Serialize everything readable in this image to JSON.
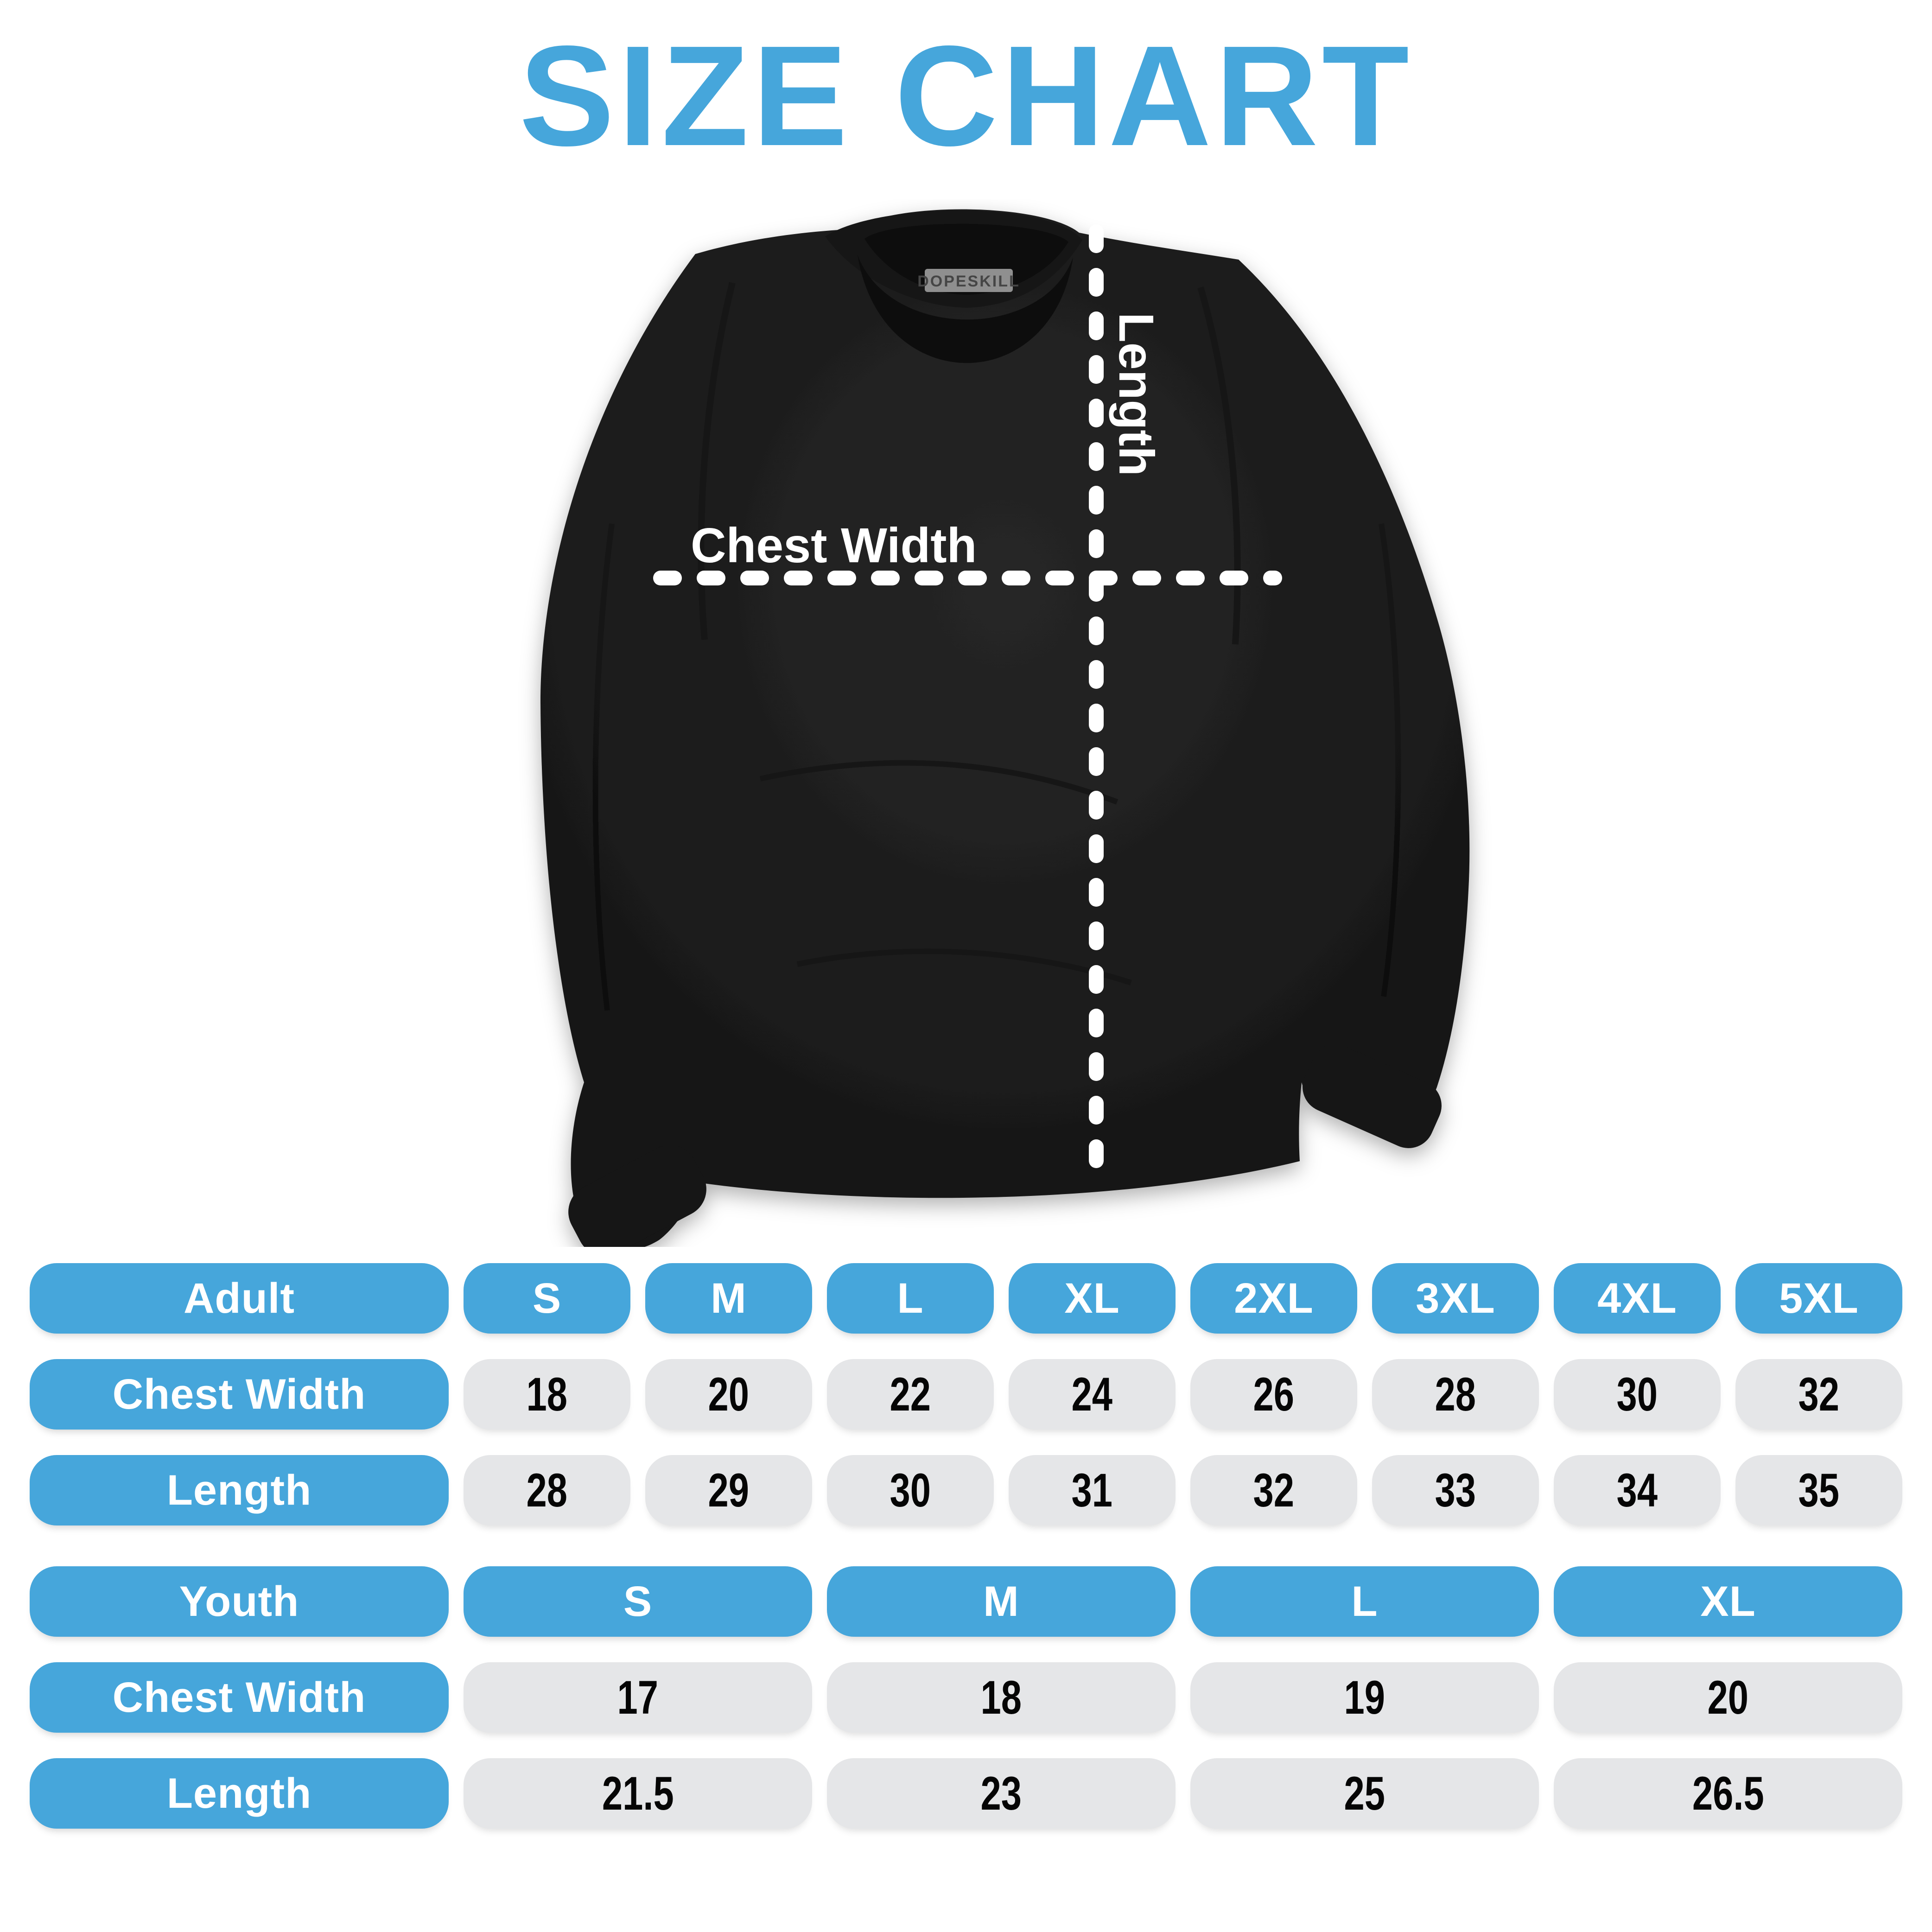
{
  "title": "SIZE CHART",
  "colors": {
    "accent_blue": "#46A6DB",
    "cell_gray": "#E5E6E8",
    "value_text": "#050505",
    "header_text": "#FFFFFF",
    "shirt_black": "#1B1B1B",
    "background": "#FFFFFF"
  },
  "shirt": {
    "brand_label": "DOPESKILL",
    "chest_width_label": "Chest Width",
    "length_label": "Length"
  },
  "adult_table": {
    "row_header": "Adult",
    "sizes": [
      "S",
      "M",
      "L",
      "XL",
      "2XL",
      "3XL",
      "4XL",
      "5XL"
    ],
    "rows": [
      {
        "label": "Chest Width",
        "values": [
          "18",
          "20",
          "22",
          "24",
          "26",
          "28",
          "30",
          "32"
        ]
      },
      {
        "label": "Length",
        "values": [
          "28",
          "29",
          "30",
          "31",
          "32",
          "33",
          "34",
          "35"
        ]
      }
    ]
  },
  "youth_table": {
    "row_header": "Youth",
    "sizes": [
      "S",
      "M",
      "L",
      "XL"
    ],
    "rows": [
      {
        "label": "Chest Width",
        "values": [
          "17",
          "18",
          "19",
          "20"
        ]
      },
      {
        "label": "Length",
        "values": [
          "21.5",
          "23",
          "25",
          "26.5"
        ]
      }
    ]
  },
  "chart_data": [
    {
      "type": "table",
      "title": "Adult",
      "columns": [
        "Adult",
        "S",
        "M",
        "L",
        "XL",
        "2XL",
        "3XL",
        "4XL",
        "5XL"
      ],
      "rows": [
        [
          "Chest Width",
          18,
          20,
          22,
          24,
          26,
          28,
          30,
          32
        ],
        [
          "Length",
          28,
          29,
          30,
          31,
          32,
          33,
          34,
          35
        ]
      ]
    },
    {
      "type": "table",
      "title": "Youth",
      "columns": [
        "Youth",
        "S",
        "M",
        "L",
        "XL"
      ],
      "rows": [
        [
          "Chest Width",
          17,
          18,
          19,
          20
        ],
        [
          "Length",
          21.5,
          23,
          25,
          26.5
        ]
      ]
    }
  ]
}
